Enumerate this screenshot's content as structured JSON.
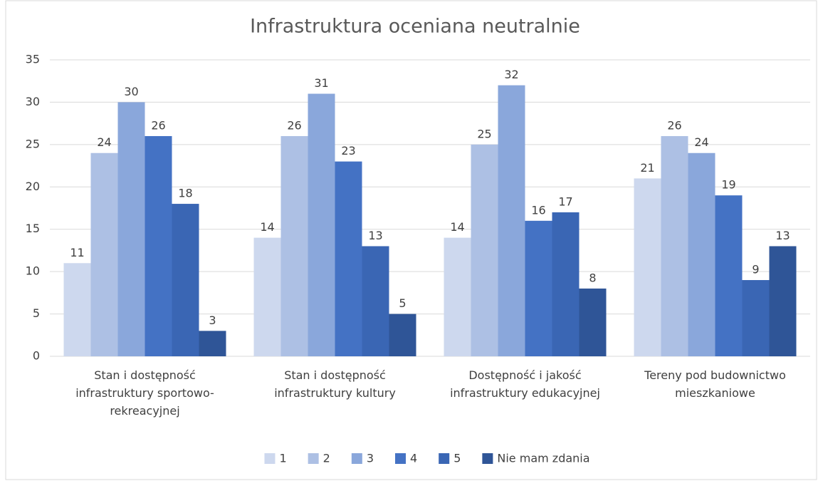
{
  "chart_data": {
    "type": "bar",
    "title": "Infrastruktura oceniana neutralnie",
    "categories": [
      "Stan i dostępność infrastruktury sportowo-rekreacyjnej",
      "Stan i dostępność infrastruktury kultury",
      "Dostępność i jakość infrastruktury edukacyjnej",
      "Tereny pod budownictwo mieszkaniowe"
    ],
    "series": [
      {
        "name": "1",
        "color": "#cdd8ee",
        "values": [
          11,
          14,
          14,
          21
        ]
      },
      {
        "name": "2",
        "color": "#adc0e4",
        "values": [
          24,
          26,
          25,
          26
        ]
      },
      {
        "name": "3",
        "color": "#8aa7db",
        "values": [
          30,
          31,
          32,
          24
        ]
      },
      {
        "name": "4",
        "color": "#4472c4",
        "values": [
          26,
          23,
          16,
          19
        ]
      },
      {
        "name": "5",
        "color": "#3a66b4",
        "values": [
          18,
          13,
          17,
          9
        ]
      },
      {
        "name": "Nie mam zdania",
        "color": "#2f5597",
        "values": [
          3,
          5,
          8,
          13
        ]
      }
    ],
    "ylim": [
      0,
      35
    ],
    "yticks": [
      0,
      5,
      10,
      15,
      20,
      25,
      30,
      35
    ],
    "grid": true,
    "legend": "bottom"
  }
}
